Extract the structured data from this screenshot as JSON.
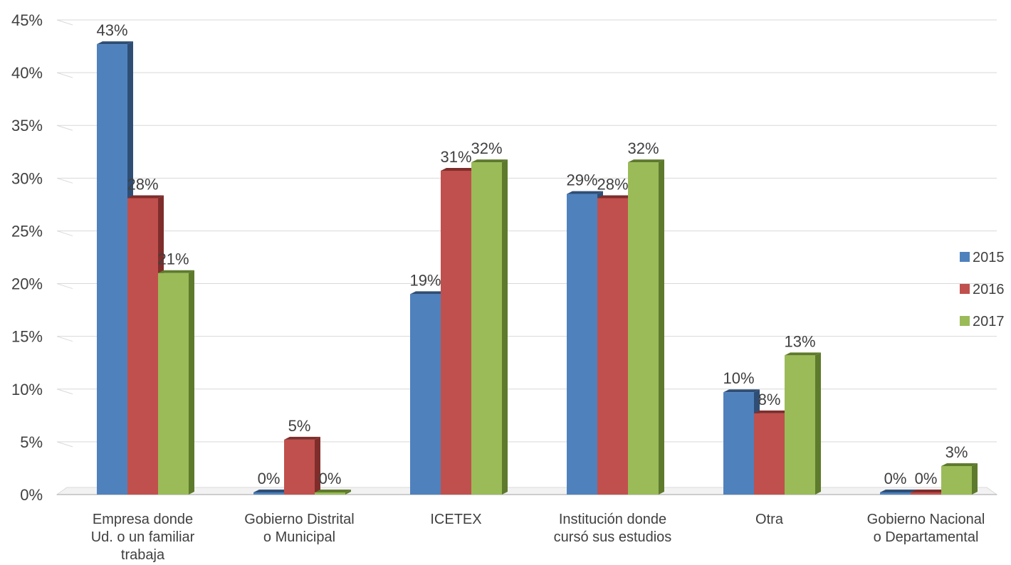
{
  "chart_data": {
    "type": "bar",
    "title": "",
    "xlabel": "",
    "ylabel": "",
    "ylim": [
      0,
      45
    ],
    "yticks": [
      "0%",
      "5%",
      "10%",
      "15%",
      "20%",
      "25%",
      "30%",
      "35%",
      "40%",
      "45%"
    ],
    "categories": [
      [
        "Empresa donde",
        "Ud. o un familiar",
        "trabaja"
      ],
      [
        "Gobierno Distrital",
        "o Municipal"
      ],
      [
        "ICETEX"
      ],
      [
        "Institución donde",
        "cursó sus estudios"
      ],
      [
        "Otra"
      ],
      [
        "Gobierno Nacional",
        "o Departamental"
      ]
    ],
    "series": [
      {
        "name": "2015",
        "color": "#4F81BD",
        "side": "#2E4E75",
        "values": [
          42.7,
          0,
          19,
          28.5,
          9.7,
          0
        ],
        "labels": [
          "43%",
          "0%",
          "19%",
          "29%",
          "10%",
          "0%"
        ]
      },
      {
        "name": "2016",
        "color": "#C0504D",
        "side": "#7E2D2B",
        "values": [
          28.1,
          5.2,
          30.7,
          28.1,
          7.7,
          0
        ],
        "labels": [
          "28%",
          "5%",
          "31%",
          "28%",
          "8%",
          "0%"
        ]
      },
      {
        "name": "2017",
        "color": "#9BBB59",
        "side": "#5E7A2C",
        "values": [
          21,
          0,
          31.5,
          31.5,
          13.2,
          2.7
        ],
        "labels": [
          "21%",
          "0%",
          "32%",
          "32%",
          "13%",
          "3%"
        ]
      }
    ],
    "grid": true,
    "legend_position": "right"
  }
}
